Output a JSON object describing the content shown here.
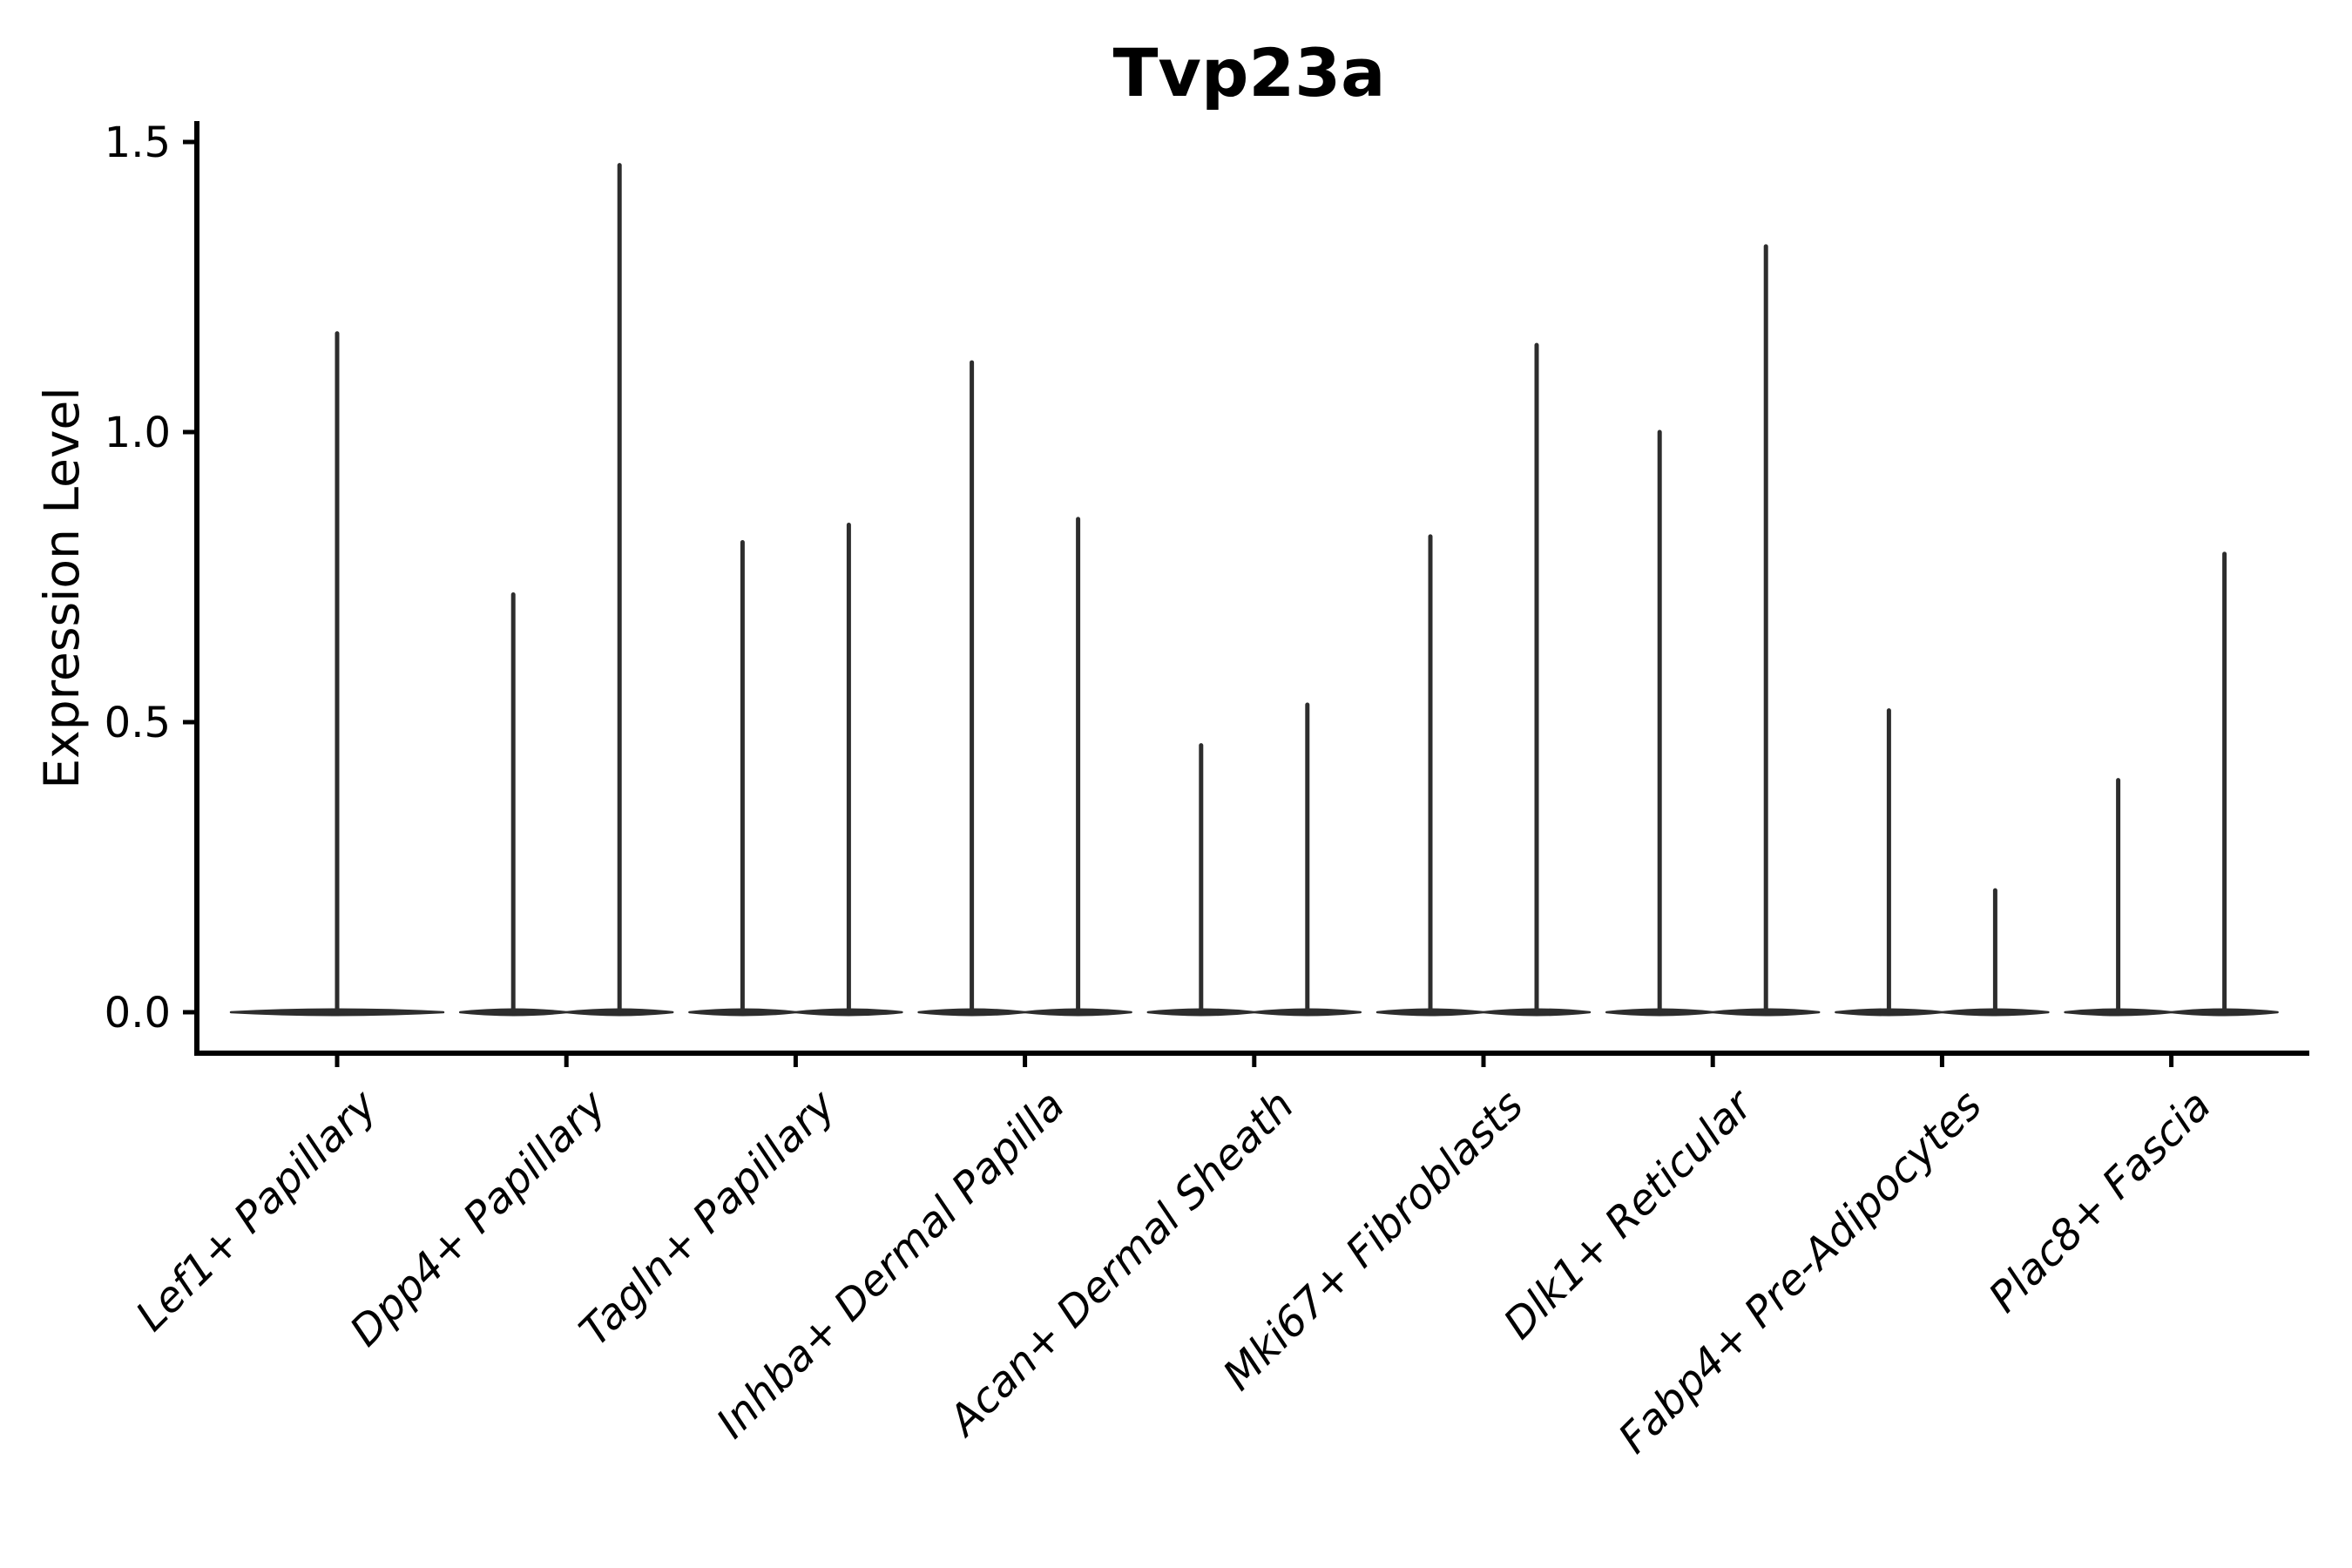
{
  "chart_data": {
    "type": "violin",
    "title": "Tvp23a",
    "xlabel": "",
    "ylabel": "Expression Level",
    "ylim": [
      -0.07,
      1.54
    ],
    "yticks": [
      0.0,
      0.5,
      1.0,
      1.5
    ],
    "ytick_labels": [
      "0.0",
      "0.5",
      "1.0",
      "1.5"
    ],
    "grid": false,
    "legend": "none",
    "categories": [
      "Lef1+ Papillary",
      "Dpp4+ Papillary",
      "Tagln+ Papillary",
      "Inhba+ Dermal Papilla",
      "Acan+ Dermal Sheath",
      "Mki67+ Fibroblasts",
      "Dlk1+ Reticular",
      "Fabp4+ Pre-Adipocytes",
      "Plac8+ Fascia"
    ],
    "distribution_note": "zero-inflated expression: each violin is a flat pancake at 0 with one thin spike rising to its maximum expression value",
    "violins": [
      {
        "category": "Lef1+ Papillary",
        "layout": "single",
        "spike_max": [
          1.17
        ]
      },
      {
        "category": "Dpp4+ Papillary",
        "layout": "pair",
        "spike_max": [
          0.72,
          1.46
        ]
      },
      {
        "category": "Tagln+ Papillary",
        "layout": "pair",
        "spike_max": [
          0.81,
          0.84
        ]
      },
      {
        "category": "Inhba+ Dermal Papilla",
        "layout": "pair",
        "spike_max": [
          1.12,
          0.85
        ]
      },
      {
        "category": "Acan+ Dermal Sheath",
        "layout": "pair",
        "spike_max": [
          0.46,
          0.53
        ]
      },
      {
        "category": "Mki67+ Fibroblasts",
        "layout": "pair",
        "spike_max": [
          0.82,
          1.15
        ]
      },
      {
        "category": "Dlk1+ Reticular",
        "layout": "pair",
        "spike_max": [
          1.0,
          1.32
        ]
      },
      {
        "category": "Fabp4+ Pre-Adipocytes",
        "layout": "pair",
        "spike_max": [
          0.52,
          0.21
        ]
      },
      {
        "category": "Plac8+ Fascia",
        "layout": "pair",
        "spike_max": [
          0.4,
          0.79
        ]
      }
    ],
    "style": {
      "violin_color": "#2d2d2d",
      "axis_color": "#000000",
      "text_color": "#000000",
      "background": "#ffffff"
    }
  }
}
